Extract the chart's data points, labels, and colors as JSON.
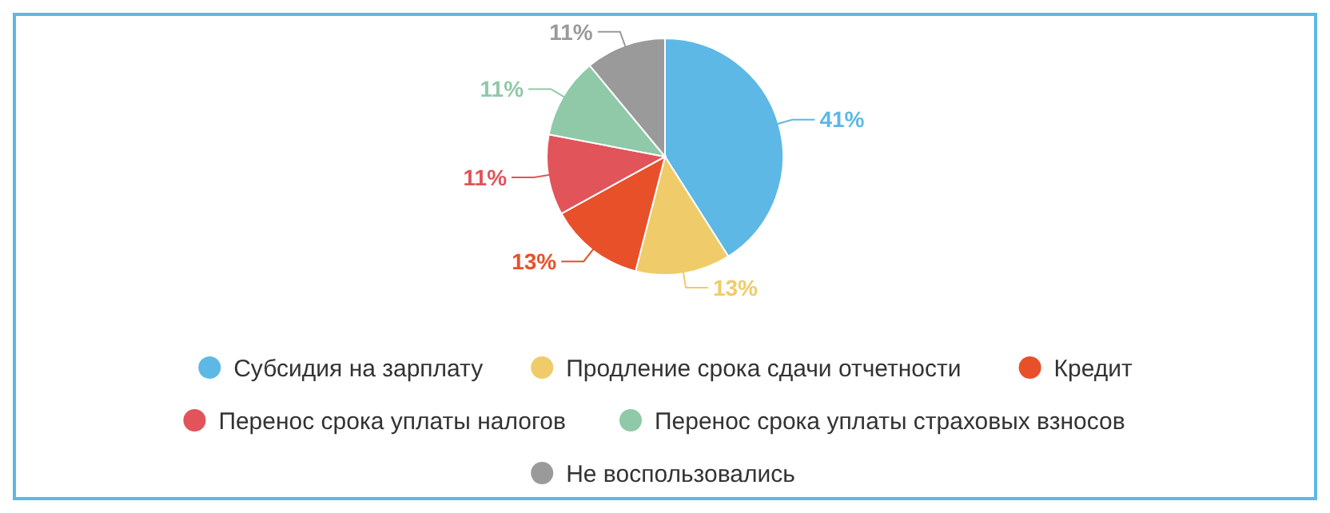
{
  "chart_data": {
    "type": "pie",
    "categories": [
      "Субсидия на зарплату",
      "Продление срока сдачи отчетности",
      "Кредит",
      "Перенос срока уплаты налогов",
      "Перенос срока уплаты страховых взносов",
      "Не воспользовались"
    ],
    "values": [
      41,
      13,
      13,
      11,
      11,
      11
    ],
    "colors": [
      "#5db8e6",
      "#f0cb69",
      "#e8502a",
      "#e0545a",
      "#8fc9a8",
      "#9a9a9a"
    ],
    "value_labels": [
      "41%",
      "13%",
      "13%",
      "11%",
      "11%",
      "11%"
    ],
    "legend": "bottom"
  }
}
